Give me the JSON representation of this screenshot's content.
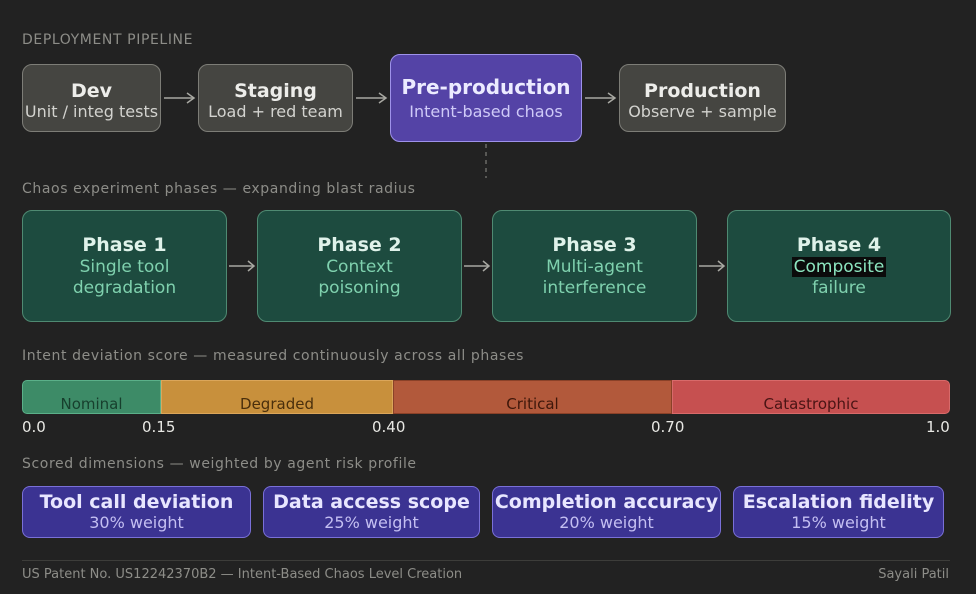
{
  "pipeline": {
    "label": "DEPLOYMENT PIPELINE",
    "stages": [
      {
        "title": "Dev",
        "subtitle": "Unit / integ tests"
      },
      {
        "title": "Staging",
        "subtitle": "Load + red team"
      },
      {
        "title": "Pre-production",
        "subtitle": "Intent-based chaos"
      },
      {
        "title": "Production",
        "subtitle": "Observe + sample"
      }
    ]
  },
  "phases": {
    "label": "Chaos experiment phases — expanding blast radius",
    "items": [
      {
        "title": "Phase 1",
        "line1": "Single tool",
        "line2": "degradation"
      },
      {
        "title": "Phase 2",
        "line1": "Context",
        "line2": "poisoning"
      },
      {
        "title": "Phase 3",
        "line1": "Multi-agent",
        "line2": "interference"
      },
      {
        "title": "Phase 4",
        "line1": "Composite",
        "line2": "failure"
      }
    ]
  },
  "score": {
    "label": "Intent deviation score — measured continuously across all phases",
    "segments": [
      {
        "name": "Nominal",
        "from": 0.0,
        "to": 0.15,
        "color": "#3d8b67"
      },
      {
        "name": "Degraded",
        "from": 0.15,
        "to": 0.4,
        "color": "#c8903c"
      },
      {
        "name": "Critical",
        "from": 0.4,
        "to": 0.7,
        "color": "#b2593b"
      },
      {
        "name": "Catastrophic",
        "from": 0.7,
        "to": 1.0,
        "color": "#c65050"
      }
    ],
    "ticks": [
      "0.0",
      "0.15",
      "0.40",
      "0.70",
      "1.0"
    ]
  },
  "dimensions": {
    "label": "Scored dimensions — weighted by agent risk profile",
    "items": [
      {
        "title": "Tool call deviation",
        "weight": "30% weight"
      },
      {
        "title": "Data access scope",
        "weight": "25% weight"
      },
      {
        "title": "Completion accuracy",
        "weight": "20% weight"
      },
      {
        "title": "Escalation fidelity",
        "weight": "15% weight"
      }
    ]
  },
  "footer": {
    "left": "US Patent No. US12242370B2 — Intent-Based Chaos Level Creation",
    "right": "Sayali Patil"
  },
  "colors": {
    "background": "#222222",
    "stage": "#454541",
    "stage_active": "#5443a6",
    "phase": "#1d4b3f",
    "dimension": "#3b3392"
  }
}
